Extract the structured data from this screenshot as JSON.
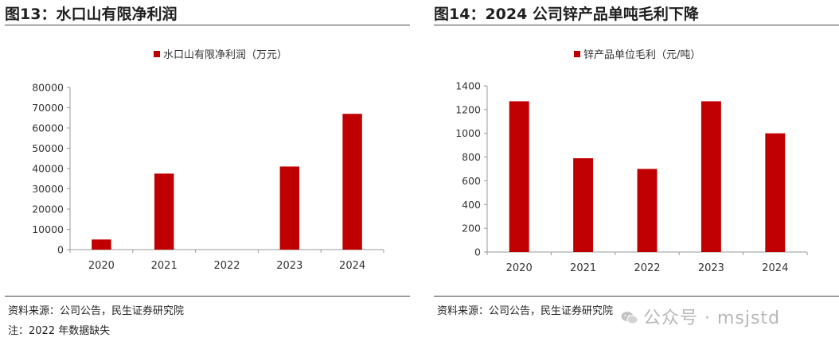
{
  "figures": [
    {
      "title": "图13：水口山有限净利润",
      "source": "资料来源：公司公告，民生证券研究院",
      "note": "注：2022 年数据缺失"
    },
    {
      "title": "图14：2024 公司锌产品单吨毛利下降",
      "source": "资料来源：公司公告，民生证券研究院"
    }
  ],
  "watermark": {
    "text": "公众号 · msjstd",
    "icon": "wechat-icon"
  },
  "colors": {
    "bar": "#c00000",
    "axis": "#9a9a9a",
    "text": "#333333"
  },
  "chart_data": [
    {
      "type": "bar",
      "title": "",
      "categories": [
        "2020",
        "2021",
        "2022",
        "2023",
        "2024"
      ],
      "series": [
        {
          "name": "水口山有限净利润（万元）",
          "values": [
            5000,
            37500,
            null,
            41000,
            67000
          ]
        }
      ],
      "ylim": [
        0,
        80000
      ],
      "yticks": [
        0,
        10000,
        20000,
        30000,
        40000,
        50000,
        60000,
        70000,
        80000
      ],
      "legend": "top-center",
      "grid": false
    },
    {
      "type": "bar",
      "title": "",
      "categories": [
        "2020",
        "2021",
        "2022",
        "2023",
        "2024"
      ],
      "series": [
        {
          "name": "锌产品单位毛利（元/吨）",
          "values": [
            1270,
            790,
            700,
            1270,
            1000
          ]
        }
      ],
      "ylim": [
        0,
        1400
      ],
      "yticks": [
        0,
        200,
        400,
        600,
        800,
        1000,
        1200,
        1400
      ],
      "legend": "top-center",
      "grid": false
    }
  ]
}
